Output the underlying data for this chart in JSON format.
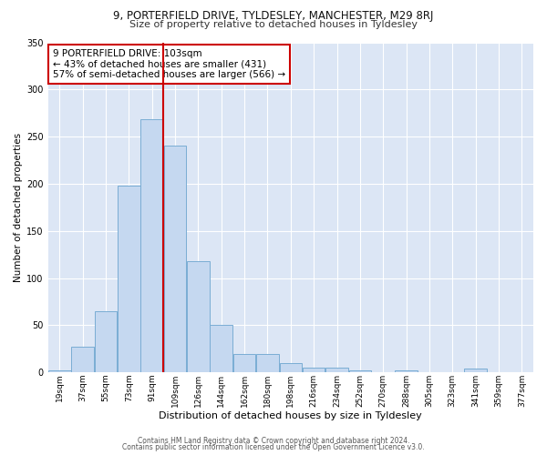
{
  "title1": "9, PORTERFIELD DRIVE, TYLDESLEY, MANCHESTER, M29 8RJ",
  "title2": "Size of property relative to detached houses in Tyldesley",
  "xlabel": "Distribution of detached houses by size in Tyldesley",
  "ylabel": "Number of detached properties",
  "bar_labels": [
    "19sqm",
    "37sqm",
    "55sqm",
    "73sqm",
    "91sqm",
    "109sqm",
    "126sqm",
    "144sqm",
    "162sqm",
    "180sqm",
    "198sqm",
    "216sqm",
    "234sqm",
    "252sqm",
    "270sqm",
    "288sqm",
    "305sqm",
    "323sqm",
    "341sqm",
    "359sqm",
    "377sqm"
  ],
  "bar_values": [
    2,
    27,
    65,
    198,
    268,
    240,
    118,
    50,
    19,
    19,
    10,
    5,
    5,
    2,
    0,
    2,
    0,
    0,
    4,
    0,
    0
  ],
  "bar_color": "#c5d8f0",
  "bar_edge_color": "#7aadd4",
  "vline_x_index": 4.5,
  "annotation_text": "9 PORTERFIELD DRIVE: 103sqm\n← 43% of detached houses are smaller (431)\n57% of semi-detached houses are larger (566) →",
  "annotation_box_color": "#ffffff",
  "annotation_box_edge": "#cc0000",
  "vline_color": "#cc0000",
  "ylim": [
    0,
    350
  ],
  "yticks": [
    0,
    50,
    100,
    150,
    200,
    250,
    300,
    350
  ],
  "footer1": "Contains HM Land Registry data © Crown copyright and database right 2024.",
  "footer2": "Contains public sector information licensed under the Open Government Licence v3.0.",
  "plot_bg_color": "#dce6f5",
  "fig_bg_color": "#ffffff",
  "grid_color": "#ffffff",
  "title1_fontsize": 8.5,
  "title2_fontsize": 8.0,
  "ylabel_fontsize": 7.5,
  "xlabel_fontsize": 8.0,
  "tick_fontsize": 6.5,
  "annot_fontsize": 7.5,
  "footer_fontsize": 5.5
}
